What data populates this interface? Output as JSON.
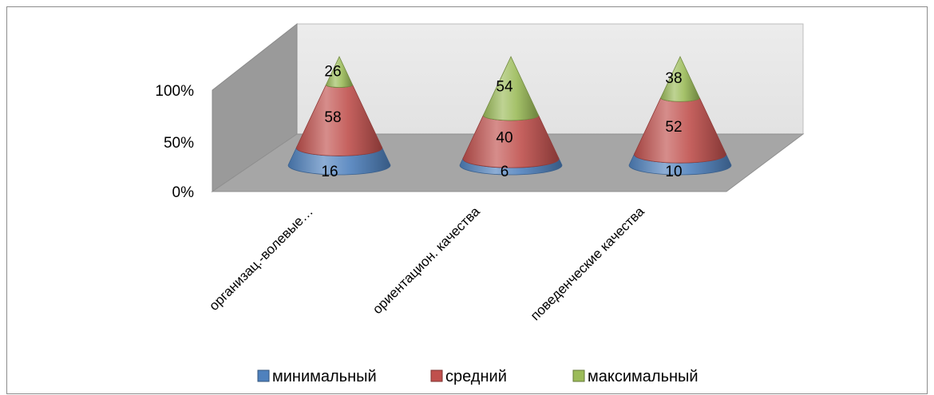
{
  "chart_data": {
    "type": "bar",
    "subtype": "3d-cone-stacked-100-percent",
    "title": "",
    "xlabel": "",
    "ylabel": "",
    "ylim": [
      0,
      100
    ],
    "y_ticks": [
      "0%",
      "50%",
      "100%"
    ],
    "categories": [
      "организац.-волевые…",
      "ориентацион. качества",
      "поведенческие качества"
    ],
    "series": [
      {
        "name": "минимальный",
        "values": [
          16,
          6,
          10
        ],
        "color": "#4f81bd"
      },
      {
        "name": "средний",
        "values": [
          58,
          40,
          52
        ],
        "color": "#c0504d"
      },
      {
        "name": "максимальный",
        "values": [
          26,
          54,
          38
        ],
        "color": "#9bbb59"
      }
    ],
    "legend_position": "bottom",
    "grid": false
  }
}
